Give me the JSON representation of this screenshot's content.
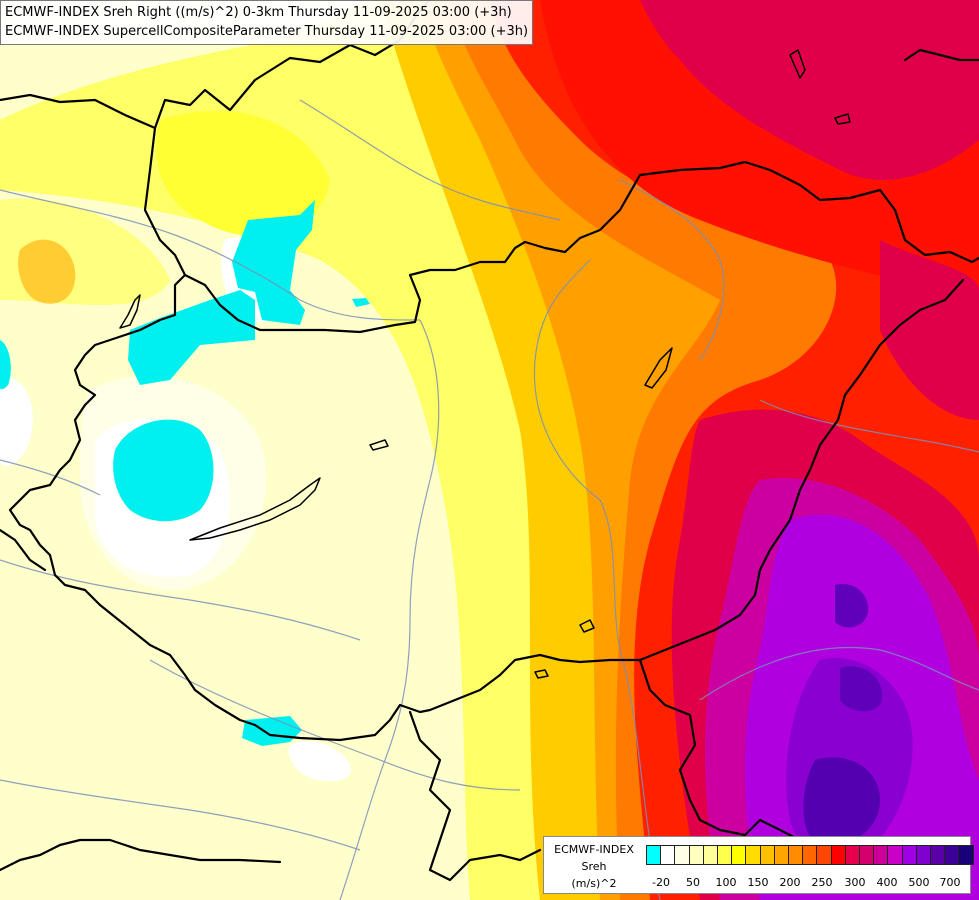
{
  "header": {
    "line1": "ECMWF-INDEX Sreh Right ((m/s)^2) 0-3km Thursday 11-09-2025 03:00 (+3h)",
    "line2": "ECMWF-INDEX SupercellCompositeParameter Thursday 11-09-2025 03:00 (+3h)"
  },
  "legend": {
    "title": "ECMWF-INDEX",
    "variable": "Sreh",
    "unit": "(m/s)^2",
    "colors": [
      "#00ffff",
      "#ffffff",
      "#ffffe6",
      "#ffffc0",
      "#ffff99",
      "#ffff4d",
      "#ffff00",
      "#ffdd00",
      "#ffc000",
      "#ffa500",
      "#ff8c00",
      "#ff6600",
      "#ff4500",
      "#ff0000",
      "#e6004d",
      "#d4006e",
      "#cc0099",
      "#c800c8",
      "#a000e6",
      "#8000d0",
      "#5a00a8",
      "#3c0096",
      "#1a0078"
    ],
    "ticks": [
      "-20",
      "50",
      "100",
      "150",
      "200",
      "250",
      "300",
      "400",
      "500",
      "700"
    ]
  },
  "map": {
    "layers": [
      "sreh-fill",
      "country-borders",
      "river-lines"
    ],
    "features": [
      "cyan-patches",
      "purple-high-zone"
    ]
  }
}
